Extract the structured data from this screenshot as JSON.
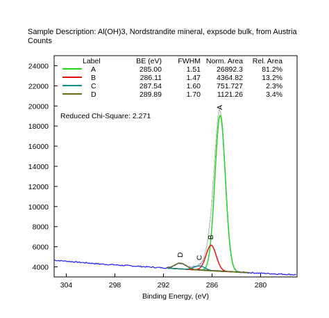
{
  "chart_data": {
    "type": "line",
    "title": "Sample Description:  Al(OH)3, Nordstrandite mineral, expsode bulk, from Austria",
    "ylabel": "Counts",
    "xlabel": "Binding Energy, (eV)",
    "xlim": [
      305.5,
      275.5
    ],
    "ylim": [
      3000,
      25000
    ],
    "x_ticks": [
      304,
      298,
      292,
      286,
      280
    ],
    "y_ticks": [
      4000,
      6000,
      8000,
      10000,
      12000,
      14000,
      16000,
      18000,
      20000,
      22000,
      24000
    ],
    "table_headers": [
      "Label",
      "BE (eV)",
      "FWHM",
      "Norm. Area",
      "Rel. Area"
    ],
    "components": [
      {
        "name": "A",
        "be": "285.00",
        "fwhm": "1.51",
        "norm_area": "26892.3",
        "rel_area": "81.2%",
        "color": "#22d622",
        "height": 15500
      },
      {
        "name": "B",
        "be": "286.11",
        "fwhm": "1.47",
        "norm_area": "4364.82",
        "rel_area": "13.2%",
        "color": "#e01010",
        "height": 2550
      },
      {
        "name": "C",
        "be": "287.54",
        "fwhm": "1.60",
        "norm_area": "751.727",
        "rel_area": "2.3%",
        "color": "#1a8a8a",
        "height": 420
      },
      {
        "name": "D",
        "be": "289.89",
        "fwhm": "1.70",
        "norm_area": "1121.26",
        "rel_area": "3.4%",
        "color": "#6b6b1a",
        "height": 580
      }
    ],
    "chi_square_label": "Reduced Chi-Square: 2.271",
    "background": {
      "x": [
        306,
        300,
        294,
        290,
        286,
        282,
        278,
        275
      ],
      "y": [
        4700,
        4300,
        4000,
        3800,
        3600,
        3450,
        3300,
        3200
      ]
    },
    "fit_region": [
      291.5,
      281.5
    ],
    "grid": false,
    "legend": "top"
  }
}
